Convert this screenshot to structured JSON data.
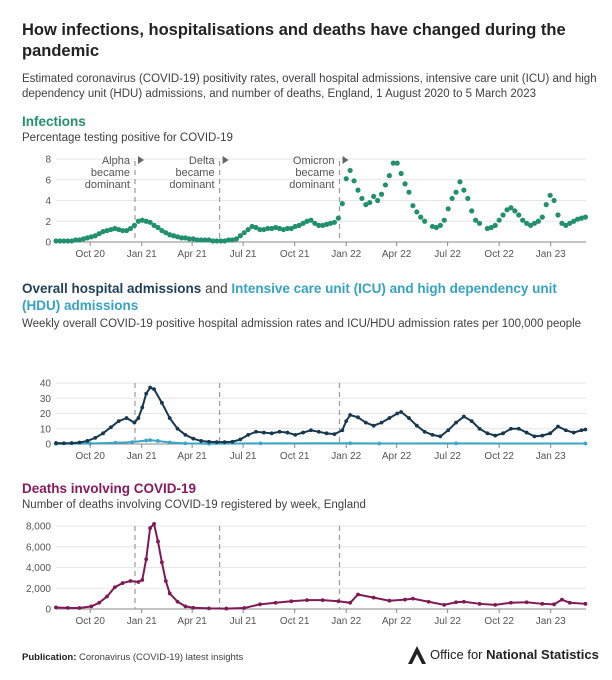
{
  "title": "How infections, hospitalisations and deaths have changed during the pandemic",
  "subtitle": "Estimated coronavirus (COVID-19) positivity rates, overall hospital admissions, intensive care unit (ICU) and high dependency unit (HDU) admissions, and number of deaths, England, 1 August 2020 to 5 March 2023",
  "footer": {
    "label": "Publication:",
    "text": "Coronavirus (COVID-19) latest insights"
  },
  "logo": {
    "text_plain": "Office for ",
    "text_bold": "National Statistics"
  },
  "colors": {
    "infections": "#22906f",
    "hospital": "#17384f",
    "icu": "#3aa6c6",
    "deaths": "#7e1a56",
    "annotation": "#9a9a9a"
  },
  "annotations": [
    {
      "date": "2020-12-20",
      "lines": [
        "Alpha",
        "became",
        "dominant"
      ]
    },
    {
      "date": "2021-05-20",
      "lines": [
        "Delta",
        "became",
        "dominant"
      ]
    },
    {
      "date": "2021-12-20",
      "lines": [
        "Omicron",
        "became",
        "dominant"
      ]
    }
  ],
  "chart_data": [
    {
      "type": "scatter",
      "title": "Infections",
      "subtitle": "Percentage testing positive for COVID-19",
      "series": [
        {
          "x": [
            "2020-08-01",
            "2020-08-08",
            "2020-08-15",
            "2020-08-22",
            "2020-08-29",
            "2020-09-05",
            "2020-09-12",
            "2020-09-19",
            "2020-09-26",
            "2020-10-03",
            "2020-10-10",
            "2020-10-17",
            "2020-10-24",
            "2020-10-31",
            "2020-11-07",
            "2020-11-14",
            "2020-11-21",
            "2020-11-28",
            "2020-12-05",
            "2020-12-12",
            "2020-12-19",
            "2020-12-26",
            "2021-01-02",
            "2021-01-09",
            "2021-01-16",
            "2021-01-23",
            "2021-01-30",
            "2021-02-06",
            "2021-02-13",
            "2021-02-20",
            "2021-02-27",
            "2021-03-06",
            "2021-03-13",
            "2021-03-20",
            "2021-03-27",
            "2021-04-03",
            "2021-04-10",
            "2021-04-17",
            "2021-04-24",
            "2021-05-01",
            "2021-05-08",
            "2021-05-15",
            "2021-05-22",
            "2021-05-29",
            "2021-06-05",
            "2021-06-12",
            "2021-06-19",
            "2021-06-26",
            "2021-07-03",
            "2021-07-10",
            "2021-07-17",
            "2021-07-24",
            "2021-07-31",
            "2021-08-07",
            "2021-08-14",
            "2021-08-21",
            "2021-08-28",
            "2021-09-04",
            "2021-09-11",
            "2021-09-18",
            "2021-09-25",
            "2021-10-02",
            "2021-10-09",
            "2021-10-16",
            "2021-10-23",
            "2021-10-30",
            "2021-11-06",
            "2021-11-13",
            "2021-11-20",
            "2021-11-27",
            "2021-12-04",
            "2021-12-11",
            "2021-12-18",
            "2021-12-25",
            "2022-01-01",
            "2022-01-08",
            "2022-01-15",
            "2022-01-22",
            "2022-01-29",
            "2022-02-05",
            "2022-02-12",
            "2022-02-19",
            "2022-02-26",
            "2022-03-05",
            "2022-03-12",
            "2022-03-19",
            "2022-03-26",
            "2022-04-02",
            "2022-04-09",
            "2022-04-16",
            "2022-04-23",
            "2022-04-30",
            "2022-05-07",
            "2022-05-14",
            "2022-05-21",
            "2022-06-04",
            "2022-06-11",
            "2022-06-18",
            "2022-06-25",
            "2022-07-02",
            "2022-07-09",
            "2022-07-16",
            "2022-07-23",
            "2022-07-30",
            "2022-08-06",
            "2022-08-13",
            "2022-08-20",
            "2022-08-27",
            "2022-09-10",
            "2022-09-17",
            "2022-09-24",
            "2022-10-01",
            "2022-10-08",
            "2022-10-15",
            "2022-10-22",
            "2022-10-29",
            "2022-11-05",
            "2022-11-12",
            "2022-11-19",
            "2022-11-26",
            "2022-12-03",
            "2022-12-10",
            "2022-12-17",
            "2022-12-24",
            "2022-12-31",
            "2023-01-07",
            "2023-01-14",
            "2023-01-21",
            "2023-01-28",
            "2023-02-04",
            "2023-02-11",
            "2023-02-18",
            "2023-02-25",
            "2023-03-04"
          ],
          "y": [
            0.1,
            0.1,
            0.1,
            0.1,
            0.1,
            0.2,
            0.2,
            0.3,
            0.4,
            0.5,
            0.6,
            0.8,
            1.0,
            1.1,
            1.2,
            1.3,
            1.2,
            1.1,
            1.1,
            1.3,
            1.6,
            2.0,
            2.1,
            2.0,
            1.9,
            1.6,
            1.4,
            1.1,
            0.9,
            0.7,
            0.6,
            0.5,
            0.4,
            0.4,
            0.3,
            0.3,
            0.2,
            0.2,
            0.2,
            0.2,
            0.1,
            0.1,
            0.1,
            0.1,
            0.2,
            0.2,
            0.3,
            0.6,
            0.9,
            1.2,
            1.5,
            1.4,
            1.2,
            1.2,
            1.3,
            1.3,
            1.4,
            1.3,
            1.2,
            1.3,
            1.3,
            1.5,
            1.6,
            1.8,
            2.0,
            2.1,
            1.8,
            1.6,
            1.6,
            1.7,
            1.8,
            1.9,
            2.3,
            3.7,
            6.1,
            6.9,
            5.9,
            5.0,
            4.2,
            3.6,
            3.8,
            4.4,
            4.0,
            4.6,
            5.5,
            6.4,
            7.6,
            7.6,
            6.6,
            5.6,
            4.8,
            3.5,
            2.9,
            2.4,
            2.0,
            1.5,
            1.4,
            1.6,
            2.1,
            3.2,
            4.2,
            4.8,
            5.8,
            5.0,
            4.2,
            3.0,
            2.1,
            1.8,
            1.3,
            1.4,
            1.6,
            2.1,
            2.6,
            3.1,
            3.3,
            3.0,
            2.6,
            2.1,
            1.8,
            1.6,
            1.8,
            2.0,
            2.4,
            3.6,
            4.5,
            4.0,
            2.6,
            1.8,
            1.6,
            1.8,
            2.0,
            2.2,
            2.3,
            2.4
          ]
        }
      ],
      "ylim": [
        0,
        8
      ],
      "yticks": [
        "0",
        "2",
        "4",
        "6",
        "8"
      ]
    },
    {
      "type": "line",
      "title_parts": [
        "Overall hospital admissions",
        " and ",
        "Intensive care unit (ICU) and high dependency unit (HDU) admissions"
      ],
      "subtitle": "Weekly overall COVID-19 positive hospital admission rates and ICU/HDU admission rates per 100,000 people",
      "series": [
        {
          "x": [
            "2020-08-01",
            "2020-08-15",
            "2020-08-29",
            "2020-09-12",
            "2020-09-26",
            "2020-10-10",
            "2020-10-24",
            "2020-11-07",
            "2020-11-21",
            "2020-12-05",
            "2020-12-19",
            "2020-12-26",
            "2021-01-02",
            "2021-01-09",
            "2021-01-16",
            "2021-01-23",
            "2021-02-06",
            "2021-02-20",
            "2021-03-06",
            "2021-03-20",
            "2021-04-03",
            "2021-04-17",
            "2021-05-01",
            "2021-05-15",
            "2021-05-29",
            "2021-06-12",
            "2021-06-26",
            "2021-07-10",
            "2021-07-24",
            "2021-08-07",
            "2021-08-21",
            "2021-09-04",
            "2021-09-18",
            "2021-10-02",
            "2021-10-16",
            "2021-10-30",
            "2021-11-13",
            "2021-11-27",
            "2021-12-11",
            "2021-12-25",
            "2022-01-01",
            "2022-01-08",
            "2022-01-22",
            "2022-02-05",
            "2022-02-19",
            "2022-03-05",
            "2022-03-19",
            "2022-04-02",
            "2022-04-09",
            "2022-04-23",
            "2022-05-07",
            "2022-05-21",
            "2022-06-04",
            "2022-06-18",
            "2022-07-02",
            "2022-07-16",
            "2022-07-30",
            "2022-08-13",
            "2022-08-27",
            "2022-09-10",
            "2022-09-24",
            "2022-10-08",
            "2022-10-22",
            "2022-11-05",
            "2022-11-19",
            "2022-12-03",
            "2022-12-17",
            "2022-12-31",
            "2023-01-14",
            "2023-01-28",
            "2023-02-11",
            "2023-02-25",
            "2023-03-04"
          ],
          "y": [
            0.6,
            0.5,
            0.6,
            1.0,
            2.0,
            4.0,
            7.0,
            11.0,
            15.0,
            17.0,
            14.0,
            17.0,
            24.0,
            33.0,
            37.0,
            36.0,
            27.0,
            17.0,
            10.0,
            6.0,
            3.5,
            2.0,
            1.5,
            1.2,
            1.2,
            1.5,
            3.0,
            6.0,
            8.0,
            7.5,
            7.0,
            8.0,
            7.5,
            6.0,
            7.5,
            9.0,
            8.0,
            7.0,
            6.5,
            9.0,
            15.0,
            19.0,
            17.5,
            14.0,
            12.0,
            14.0,
            17.0,
            20.0,
            21.0,
            17.0,
            12.0,
            8.0,
            6.0,
            5.0,
            9.0,
            14.0,
            18.0,
            15.0,
            10.0,
            7.0,
            5.5,
            7.0,
            10.0,
            10.0,
            7.5,
            5.0,
            5.5,
            7.0,
            11.5,
            9.0,
            7.5,
            9.0,
            9.5
          ]
        },
        {
          "x": [
            "2020-08-01",
            "2020-10-01",
            "2020-11-15",
            "2020-12-15",
            "2021-01-09",
            "2021-01-16",
            "2021-01-30",
            "2021-02-20",
            "2021-03-20",
            "2021-05-01",
            "2021-08-01",
            "2022-01-08",
            "2022-03-01",
            "2022-07-16",
            "2023-03-04"
          ],
          "y": [
            0.1,
            0.3,
            0.8,
            1.2,
            2.3,
            2.5,
            2.0,
            1.0,
            0.4,
            0.2,
            0.4,
            0.5,
            0.3,
            0.4,
            0.3
          ]
        }
      ],
      "ylim": [
        0,
        40
      ],
      "yticks": [
        "0",
        "10",
        "20",
        "30",
        "40"
      ]
    },
    {
      "type": "line",
      "title": "Deaths involving COVID-19",
      "subtitle": "Number of deaths involving COVID-19 registered by week, England",
      "series": [
        {
          "x": [
            "2020-08-01",
            "2020-08-22",
            "2020-09-12",
            "2020-10-03",
            "2020-10-17",
            "2020-10-31",
            "2020-11-14",
            "2020-11-28",
            "2020-12-12",
            "2020-12-26",
            "2021-01-02",
            "2021-01-09",
            "2021-01-16",
            "2021-01-23",
            "2021-01-30",
            "2021-02-06",
            "2021-02-13",
            "2021-02-20",
            "2021-03-06",
            "2021-03-20",
            "2021-04-03",
            "2021-05-01",
            "2021-06-01",
            "2021-07-03",
            "2021-07-31",
            "2021-08-28",
            "2021-09-25",
            "2021-10-23",
            "2021-11-20",
            "2021-12-18",
            "2022-01-08",
            "2022-01-22",
            "2022-02-19",
            "2022-03-19",
            "2022-04-16",
            "2022-04-30",
            "2022-05-28",
            "2022-06-25",
            "2022-07-16",
            "2022-07-30",
            "2022-08-27",
            "2022-09-24",
            "2022-10-22",
            "2022-11-19",
            "2022-12-17",
            "2023-01-07",
            "2023-01-21",
            "2023-02-04",
            "2023-03-04"
          ],
          "y": [
            150,
            110,
            100,
            250,
            600,
            1200,
            2100,
            2500,
            2700,
            2600,
            2800,
            4800,
            7800,
            8200,
            6500,
            4500,
            2700,
            1500,
            700,
            250,
            120,
            60,
            40,
            100,
            450,
            600,
            750,
            850,
            850,
            750,
            600,
            1400,
            1100,
            800,
            900,
            1000,
            700,
            400,
            650,
            700,
            500,
            400,
            600,
            650,
            500,
            450,
            900,
            600,
            500
          ]
        }
      ],
      "ylim": [
        0,
        8000
      ],
      "yticks": [
        "0",
        "2,000",
        "4,000",
        "6,000",
        "8,000"
      ]
    }
  ],
  "xaxis": {
    "ticks": [
      {
        "date": "2020-10-01",
        "label": "Oct 20"
      },
      {
        "date": "2021-01-01",
        "label": "Jan 21"
      },
      {
        "date": "2021-04-01",
        "label": "Apr 21"
      },
      {
        "date": "2021-07-01",
        "label": "Jul 21"
      },
      {
        "date": "2021-10-01",
        "label": "Oct 21"
      },
      {
        "date": "2022-01-01",
        "label": "Jan 22"
      },
      {
        "date": "2022-04-01",
        "label": "Apr 22"
      },
      {
        "date": "2022-07-01",
        "label": "Jul 22"
      },
      {
        "date": "2022-10-01",
        "label": "Oct 22"
      },
      {
        "date": "2023-01-01",
        "label": "Jan 23"
      }
    ],
    "range": [
      "2020-08-01",
      "2023-03-05"
    ]
  }
}
